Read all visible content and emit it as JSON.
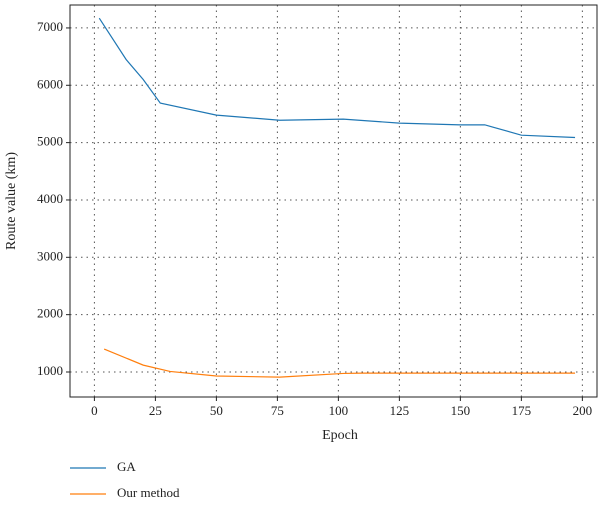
{
  "chart_data": {
    "type": "line",
    "x_label": "Epoch",
    "y_label": "Route value (km)",
    "xlim": [
      -10,
      206
    ],
    "xticks": [
      0,
      25,
      50,
      75,
      100,
      125,
      150,
      175,
      200
    ],
    "ylim": [
      564,
      7400
    ],
    "yticks": [
      1000,
      2000,
      3000,
      4000,
      5000,
      6000,
      7000
    ],
    "grid": true,
    "legend": "bottom-left",
    "series": [
      {
        "name": "GA",
        "color": "#1f77b4",
        "x": [
          2,
          13,
          20,
          27,
          50,
          76,
          102,
          125,
          150,
          160,
          175,
          197
        ],
        "values": [
          7170,
          6450,
          6100,
          5690,
          5480,
          5390,
          5410,
          5340,
          5310,
          5310,
          5130,
          5090
        ]
      },
      {
        "name": "Our method",
        "color": "#ff7f0e",
        "x": [
          4,
          20,
          31,
          50,
          76,
          102,
          110,
          150,
          197
        ],
        "values": [
          1400,
          1120,
          1010,
          930,
          910,
          975,
          980,
          980,
          980
        ]
      }
    ]
  }
}
